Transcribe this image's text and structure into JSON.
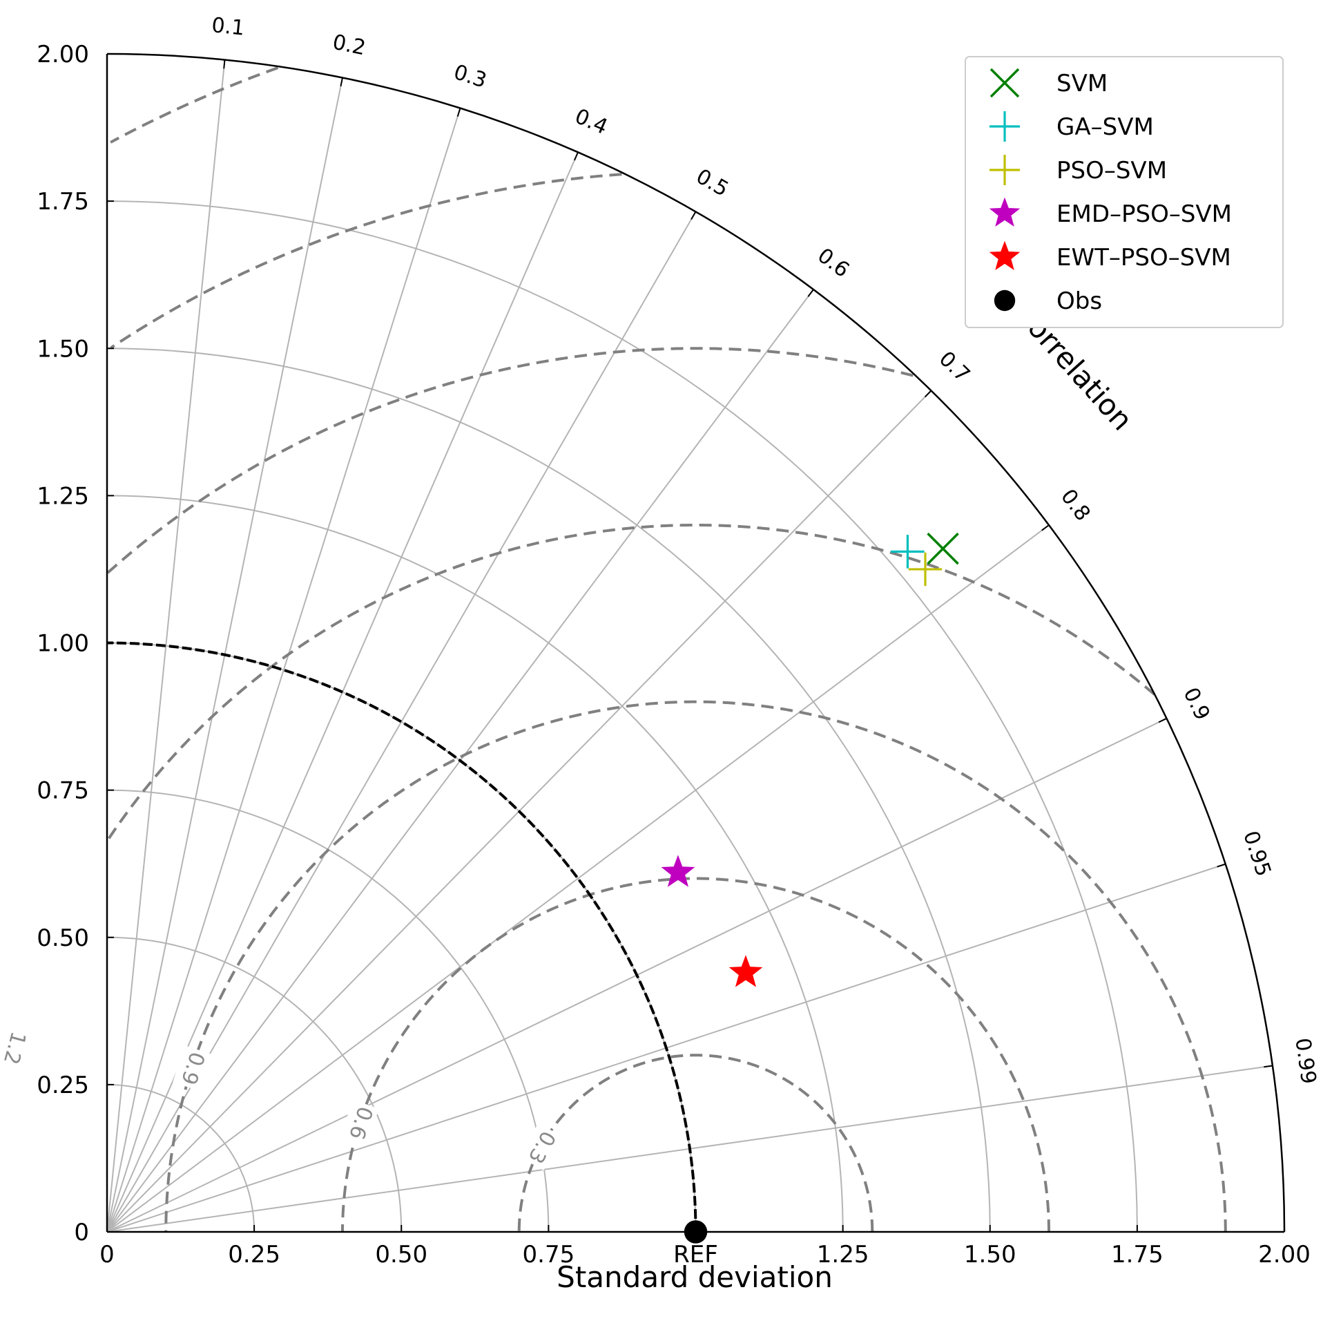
{
  "chart_data": {
    "type": "taylor",
    "xlabel": "Standard deviation",
    "corr_axis_label": "Correlation",
    "std_ticks": [
      {
        "value": 0,
        "label": "0"
      },
      {
        "value": 0.25,
        "label": "0.25"
      },
      {
        "value": 0.5,
        "label": "0.50"
      },
      {
        "value": 0.75,
        "label": "0.75"
      },
      {
        "value": 1.0,
        "label": "1.00"
      },
      {
        "value": 1.25,
        "label": "1.25"
      },
      {
        "value": 1.5,
        "label": "1.50"
      },
      {
        "value": 1.75,
        "label": "1.75"
      },
      {
        "value": 2.0,
        "label": "2.00"
      }
    ],
    "x_ticks": [
      {
        "value": 0,
        "label": "0"
      },
      {
        "value": 0.25,
        "label": "0.25"
      },
      {
        "value": 0.5,
        "label": "0.50"
      },
      {
        "value": 0.75,
        "label": "0.75"
      },
      {
        "value": 1.0,
        "label": "REF"
      },
      {
        "value": 1.25,
        "label": "1.25"
      },
      {
        "value": 1.5,
        "label": "1.50"
      },
      {
        "value": 1.75,
        "label": "1.75"
      },
      {
        "value": 2.0,
        "label": "2.00"
      }
    ],
    "std_max": 2.0,
    "ref_std": 1.0,
    "corr_ticks": [
      {
        "value": 0.1,
        "label": "0.1"
      },
      {
        "value": 0.2,
        "label": "0.2"
      },
      {
        "value": 0.3,
        "label": "0.3"
      },
      {
        "value": 0.4,
        "label": "0.4"
      },
      {
        "value": 0.5,
        "label": "0.5"
      },
      {
        "value": 0.6,
        "label": "0.6"
      },
      {
        "value": 0.7,
        "label": "0.7"
      },
      {
        "value": 0.8,
        "label": "0.8"
      },
      {
        "value": 0.9,
        "label": "0.9"
      },
      {
        "value": 0.95,
        "label": "0.95"
      },
      {
        "value": 0.99,
        "label": "0.99"
      }
    ],
    "rms_contours": [
      {
        "value": 0.3,
        "label": "0.3"
      },
      {
        "value": 0.6,
        "label": "0.6"
      },
      {
        "value": 0.9,
        "label": "0.9"
      },
      {
        "value": 1.2,
        "label": "1.2"
      },
      {
        "value": 1.5,
        "label": "1.5"
      },
      {
        "value": 1.8,
        "label": "1.8"
      },
      {
        "value": 2.1,
        "label": "2.1"
      }
    ],
    "grid": true,
    "legend_position": "top-right",
    "series": [
      {
        "name": "SVM",
        "marker": "x",
        "color": "#008000",
        "x": 1.42,
        "y": 1.16
      },
      {
        "name": "GA–SVM",
        "marker": "+",
        "color": "#00bfbf",
        "x": 1.36,
        "y": 1.155
      },
      {
        "name": "PSO–SVM",
        "marker": "+",
        "color": "#bfbf00",
        "x": 1.39,
        "y": 1.125
      },
      {
        "name": "EMD–PSO–SVM",
        "marker": "star",
        "color": "#bf00bf",
        "x": 0.97,
        "y": 0.61
      },
      {
        "name": "EWT–PSO–SVM",
        "marker": "star",
        "color": "#ff0000",
        "x": 1.085,
        "y": 0.44
      },
      {
        "name": "Obs",
        "marker": "circle",
        "color": "#000000",
        "x": 1.0,
        "y": 0.0
      }
    ]
  }
}
